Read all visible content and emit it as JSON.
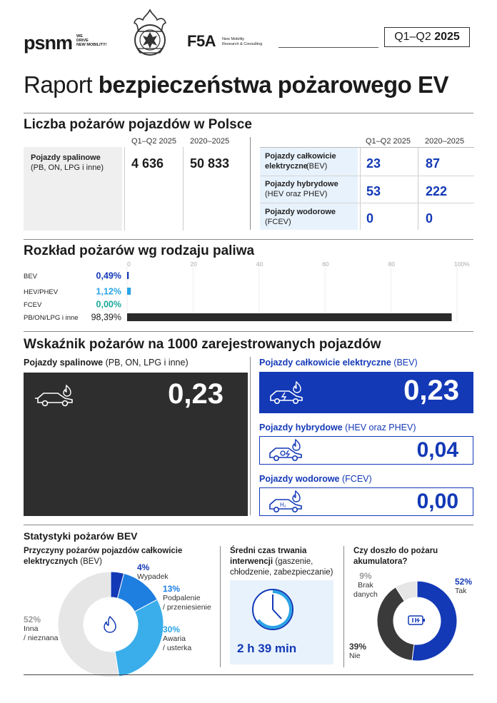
{
  "header": {
    "psnm_logo": "psnm",
    "psnm_tagline": [
      "WE",
      "DRIVE",
      "NEW MOBILITY!"
    ],
    "f5a_logo": "F5A",
    "f5a_tagline": [
      "New Mobility",
      "Research & Consulting"
    ],
    "period_prefix": "Q1–Q2 ",
    "period_year": "2025",
    "emblem_icon": "fire-service-emblem-icon"
  },
  "title": {
    "regular": "Raport ",
    "bold": "bezpieczeństwa pożarowego EV"
  },
  "fires_count": {
    "heading": "Liczba pożarów pojazdów w Polsce",
    "col_period": "Q1–Q2 2025",
    "col_total": "2020–2025",
    "combustion": {
      "label_bold": "Pojazdy spalinowe",
      "label_sub": "(PB, ON, LPG i inne)",
      "period": "4 636",
      "total": "50 833"
    },
    "electric_rows": [
      {
        "label_bold": "Pojazdy całkowicie elektryczne",
        "label_sub": "(BEV)",
        "period": "23",
        "total": "87"
      },
      {
        "label_bold": "Pojazdy hybrydowe",
        "label_sub": "(HEV oraz PHEV)",
        "period": "53",
        "total": "222"
      },
      {
        "label_bold": "Pojazdy wodorowe",
        "label_sub": "(FCEV)",
        "period": "0",
        "total": "0"
      }
    ]
  },
  "fuel_distribution": {
    "heading": "Rozkład pożarów wg rodzaju paliwa",
    "colors": {
      "BEV": "#1339b6",
      "HEV/PHEV": "#2aa4e6",
      "FCEV": "#1aa89a",
      "PB/ON/LPG i inne": "#2a2a2a"
    },
    "axis_ticks": [
      "0",
      "20",
      "40",
      "60",
      "80",
      "100%"
    ]
  },
  "chart_data": {
    "type": "bar",
    "orientation": "horizontal",
    "categories": [
      "BEV",
      "HEV/PHEV",
      "FCEV",
      "PB/ON/LPG i inne"
    ],
    "values": [
      0.49,
      1.12,
      0.0,
      98.39
    ],
    "value_labels": [
      "0,49%",
      "1,12%",
      "0,00%",
      "98,39%"
    ],
    "xlim": [
      0,
      100
    ],
    "xticks": [
      "0",
      "20",
      "40",
      "60",
      "80",
      "100%"
    ],
    "grid": true
  },
  "rate": {
    "heading": "Wskaźnik pożarów na 1000 zarejestrowanych pojazdów",
    "combustion": {
      "label_bold": "Pojazdy spalinowe",
      "label_sub": " (PB, ON, LPG i inne)",
      "value": "0,23",
      "icon": "combustion-car-fire-icon"
    },
    "bev": {
      "label_bold": "Pojazdy całkowicie elektryczne",
      "label_sub": " (BEV)",
      "value": "0,23",
      "icon": "electric-car-fire-icon"
    },
    "hybrid": {
      "label_bold": "Pojazdy hybrydowe",
      "label_sub": " (HEV oraz PHEV)",
      "value": "0,04",
      "icon": "hybrid-car-fire-icon"
    },
    "hydrogen": {
      "label_bold": "Pojazdy wodorowe",
      "label_sub": " (FCEV)",
      "value": "0,00",
      "icon": "hydrogen-car-fire-icon",
      "h2": "H₂"
    }
  },
  "bev_stats": {
    "heading": "Statystyki pożarów BEV",
    "causes": {
      "heading_bold": "Przyczyny pożarów pojazdów całkowicie elektrycznych",
      "heading_sub": " (BEV)",
      "segments": [
        {
          "pct": "4%",
          "value": 4,
          "label": [
            "Wypadek"
          ],
          "color": "#1339b6"
        },
        {
          "pct": "13%",
          "value": 13,
          "label": [
            "Podpalenie",
            "/ przeniesienie"
          ],
          "color": "#1f7fe0"
        },
        {
          "pct": "30%",
          "value": 30,
          "label": [
            "Awaria",
            "/ usterka"
          ],
          "color": "#3aaeea"
        },
        {
          "pct": "52%",
          "value": 52,
          "label": [
            "Inna",
            "/ nieznana"
          ],
          "color": "#e6e6e6"
        }
      ]
    },
    "duration": {
      "heading_bold_1": "Średni czas trwania",
      "heading_bold_2": "interwencji",
      "heading_sub_1": " (gaszenie,",
      "heading_sub_2": "chłodzenie, zabezpieczanie)",
      "value": "2 h 39 min",
      "fraction_of_hour_arc": 0.65
    },
    "battery": {
      "heading": [
        "Czy doszło do pożaru",
        "akumulatora?"
      ],
      "segments": [
        {
          "pct": "52%",
          "value": 52,
          "label": "Tak",
          "color": "#1339b6"
        },
        {
          "pct": "39%",
          "value": 39,
          "label": "Nie",
          "color": "#3a3a3a"
        },
        {
          "pct": "9%",
          "value": 9,
          "label": [
            "Brak",
            "danych"
          ],
          "color": "#e6e6e6"
        }
      ]
    }
  }
}
